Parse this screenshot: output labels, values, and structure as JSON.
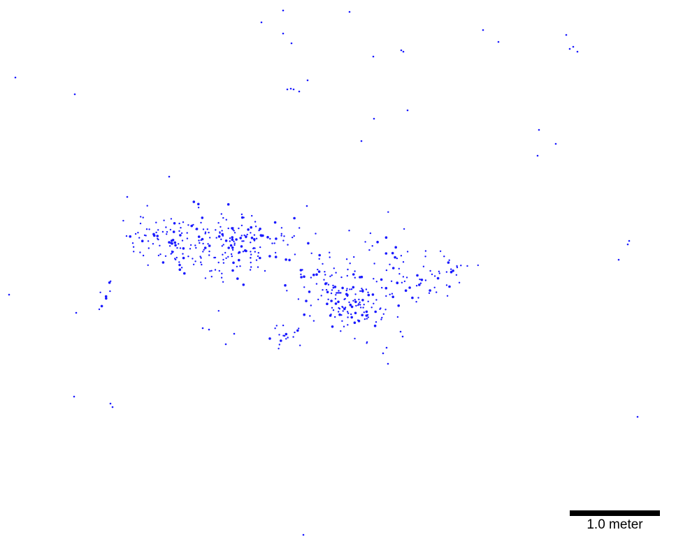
{
  "colors": {
    "background": "#ffffff",
    "points": "#1a1aff",
    "scale_bar": "#000000"
  },
  "scale_bar": {
    "label": "1.0 meter"
  }
}
